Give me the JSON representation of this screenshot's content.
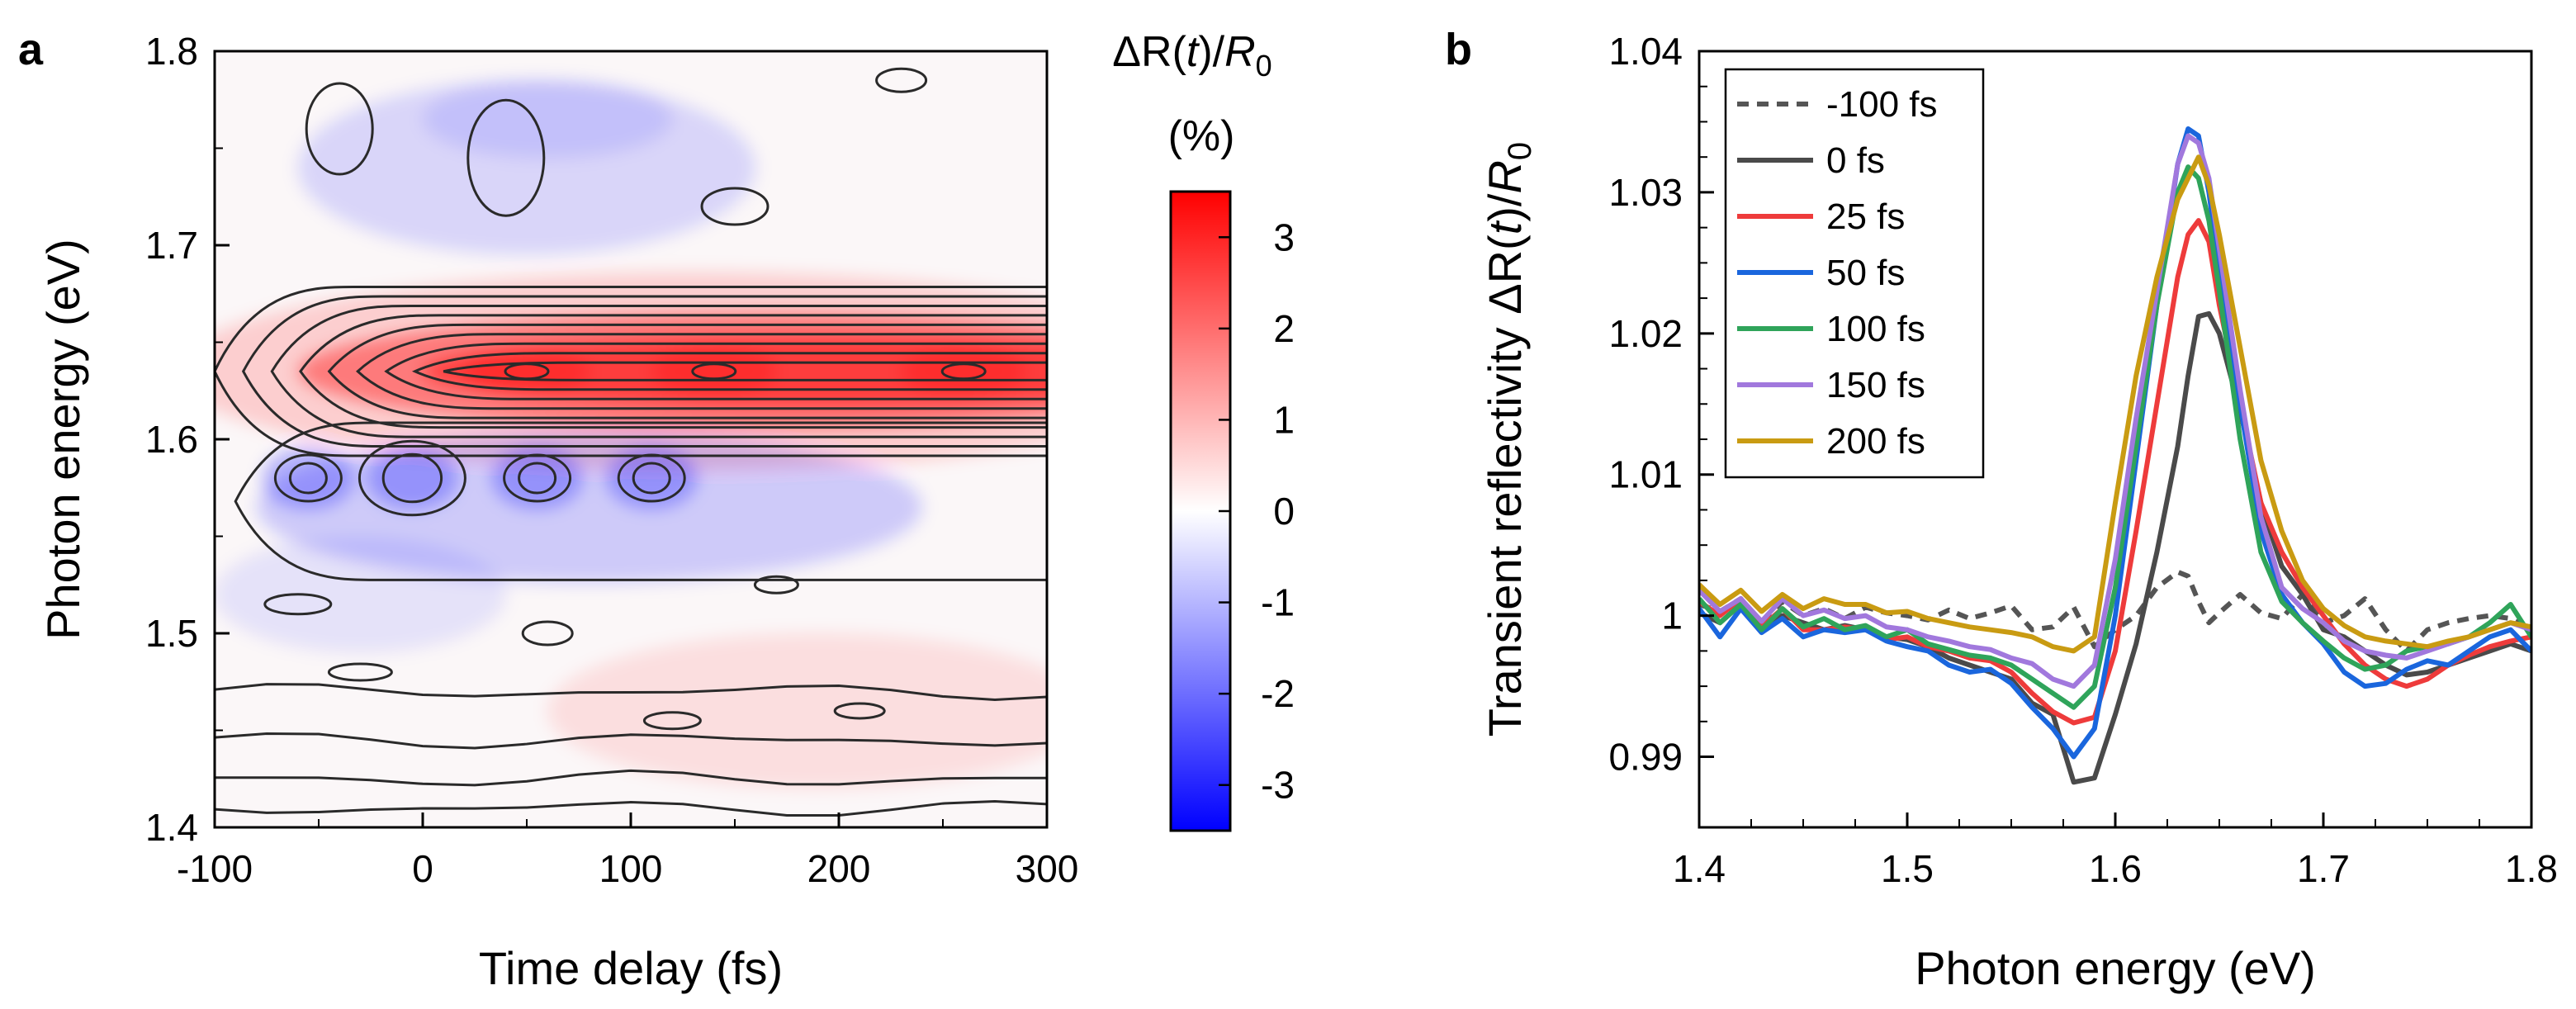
{
  "chart_data": [
    {
      "panel": "a",
      "type": "heatmap",
      "xlabel": "Time delay (fs)",
      "ylabel": "Photon energy (eV)",
      "xlim": [
        -100,
        300
      ],
      "ylim": [
        1.4,
        1.8
      ],
      "x_ticks": [
        "-100",
        "0",
        "100",
        "200",
        "300"
      ],
      "y_ticks": [
        "1.4",
        "1.5",
        "1.6",
        "1.7",
        "1.8"
      ],
      "colorbar": {
        "title_line1": "ΔR(t)/R0",
        "title_main": "ΔR(",
        "title_t": "t",
        "title_close": ")/",
        "title_R": "R",
        "title_sub": "0",
        "title_line2": "(%)",
        "range": [
          -3.5,
          3.5
        ],
        "ticks": [
          "3",
          "2",
          "1",
          "0",
          "-1",
          "-2",
          "-3"
        ],
        "colors": {
          "low": "#0000ff",
          "mid": "#ffffff",
          "high": "#ff0000"
        }
      },
      "features": {
        "positive_band": {
          "energy_center_eV": 1.635,
          "energy_halfwidth_eV": 0.03,
          "onset_fs": -60,
          "peak_percent": 3.2,
          "maxima_fs": [
            50,
            140,
            260
          ]
        },
        "negative_band": {
          "energy_center_eV": 1.58,
          "energy_halfwidth_eV": 0.03,
          "onset_fs": -80,
          "min_percent": -1.4,
          "minima_fs": [
            -55,
            -5,
            55,
            110
          ]
        },
        "upper_negative_region": {
          "energy_center_eV": 1.74,
          "min_percent": -0.6
        }
      }
    },
    {
      "panel": "b",
      "type": "line",
      "xlabel": "Photon energy (eV)",
      "ylabel": "Transient reflectivity ΔR(t)/R0",
      "ylabel_main": "Transient reflectivity ΔR(",
      "ylabel_t": "t",
      "ylabel_close": ")/",
      "ylabel_R": "R",
      "ylabel_sub": "0",
      "xlim": [
        1.4,
        1.8
      ],
      "ylim": [
        0.985,
        1.04
      ],
      "x_ticks": [
        "1.4",
        "1.5",
        "1.6",
        "1.7",
        "1.8"
      ],
      "y_ticks": [
        "0.99",
        "1",
        "1.01",
        "1.02",
        "1.03",
        "1.04"
      ],
      "x": [
        1.4,
        1.41,
        1.42,
        1.43,
        1.44,
        1.45,
        1.46,
        1.47,
        1.48,
        1.49,
        1.5,
        1.51,
        1.52,
        1.53,
        1.54,
        1.55,
        1.56,
        1.57,
        1.58,
        1.59,
        1.6,
        1.61,
        1.62,
        1.63,
        1.635,
        1.64,
        1.645,
        1.65,
        1.66,
        1.67,
        1.68,
        1.69,
        1.7,
        1.71,
        1.72,
        1.73,
        1.74,
        1.75,
        1.76,
        1.77,
        1.78,
        1.79,
        1.8
      ],
      "series": [
        {
          "name": "-100 fs",
          "color": "#555555",
          "dash": true,
          "values": [
            1.0008,
            1.0003,
            1.0012,
            0.9995,
            1.001,
            1.0,
            1.0005,
            0.9998,
            1.0006,
            1.0002,
            1.0,
            0.9997,
            1.0004,
            0.9998,
            1.0002,
            1.0007,
            0.999,
            0.9992,
            1.0006,
            0.9978,
            0.999,
            1.0,
            1.002,
            1.0031,
            1.0028,
            1.001,
            0.9995,
            1.0002,
            1.0015,
            1.0002,
            0.9998,
            1.0015,
            0.9995,
            1.0,
            1.0012,
            0.999,
            0.9975,
            0.999,
            0.9995,
            0.9998,
            1.0,
            0.9998,
            0.999
          ]
        },
        {
          "name": "0 fs",
          "color": "#4a4a4a",
          "dash": false,
          "values": [
            1.0002,
            0.9995,
            1.0008,
            0.999,
            1.0,
            0.9995,
            0.999,
            0.9993,
            0.999,
            0.9985,
            0.9983,
            0.9978,
            0.997,
            0.9965,
            0.996,
            0.9955,
            0.9938,
            0.993,
            0.9882,
            0.9885,
            0.993,
            0.998,
            1.0045,
            1.012,
            1.017,
            1.0212,
            1.0214,
            1.02,
            1.0145,
            1.008,
            1.0035,
            1.0015,
            0.999,
            0.9985,
            0.9975,
            0.9965,
            0.9958,
            0.996,
            0.9965,
            0.997,
            0.9975,
            0.998,
            0.9975
          ]
        },
        {
          "name": "25 fs",
          "color": "#ee3b3b",
          "dash": false,
          "values": [
            1.001,
            1.0,
            1.0012,
            0.9992,
            1.0005,
            0.999,
            0.999,
            0.9992,
            0.999,
            0.9983,
            0.9985,
            0.9978,
            0.9975,
            0.997,
            0.9968,
            0.996,
            0.9945,
            0.9932,
            0.9924,
            0.9928,
            0.9975,
            1.006,
            1.015,
            1.024,
            1.027,
            1.028,
            1.0265,
            1.022,
            1.015,
            1.008,
            1.0045,
            1.002,
            1.0,
            0.998,
            0.9965,
            0.9955,
            0.995,
            0.9955,
            0.9965,
            0.9972,
            0.9978,
            0.9982,
            0.9985
          ]
        },
        {
          "name": "50 fs",
          "color": "#1a66dd",
          "dash": false,
          "values": [
            1.0005,
            0.9985,
            1.0005,
            0.9988,
            0.9998,
            0.9985,
            0.999,
            0.9988,
            0.999,
            0.9982,
            0.9978,
            0.9975,
            0.9965,
            0.996,
            0.9962,
            0.9952,
            0.9935,
            0.992,
            0.99,
            0.992,
            1.0,
            1.011,
            1.022,
            1.032,
            1.0345,
            1.034,
            1.03,
            1.0245,
            1.015,
            1.006,
            1.0015,
            0.9995,
            0.998,
            0.996,
            0.995,
            0.9952,
            0.9962,
            0.9968,
            0.9965,
            0.9975,
            0.9985,
            0.999,
            0.9975
          ]
        },
        {
          "name": "100 fs",
          "color": "#2fa45a",
          "dash": false,
          "values": [
            1.0012,
            0.9995,
            1.0008,
            0.999,
            1.0005,
            0.9992,
            0.9998,
            0.999,
            0.9993,
            0.9985,
            0.999,
            0.998,
            0.9976,
            0.9972,
            0.997,
            0.9965,
            0.9955,
            0.9945,
            0.9935,
            0.995,
            1.002,
            1.012,
            1.022,
            1.03,
            1.0318,
            1.031,
            1.028,
            1.023,
            1.0125,
            1.0045,
            1.001,
            0.9995,
            0.9982,
            0.997,
            0.9962,
            0.9965,
            0.9975,
            0.9978,
            0.998,
            0.9985,
            0.9995,
            1.0008,
            0.9985
          ]
        },
        {
          "name": "150 fs",
          "color": "#a178dd",
          "dash": false,
          "values": [
            1.0018,
            1.0003,
            1.0012,
            0.9996,
            1.0012,
            1.0,
            1.0004,
            0.9998,
            1.0,
            0.9992,
            0.999,
            0.9985,
            0.9982,
            0.9978,
            0.9976,
            0.997,
            0.9966,
            0.9955,
            0.995,
            0.9965,
            1.004,
            1.014,
            1.023,
            1.032,
            1.034,
            1.0335,
            1.031,
            1.026,
            1.016,
            1.007,
            1.002,
            1.0005,
            0.9995,
            0.9982,
            0.9975,
            0.9972,
            0.997,
            0.9975,
            0.998,
            0.9985,
            0.999,
            0.9995,
            0.999
          ]
        },
        {
          "name": "200 fs",
          "color": "#c99b12",
          "dash": false,
          "values": [
            1.0022,
            1.0008,
            1.0018,
            1.0003,
            1.0015,
            1.0005,
            1.0012,
            1.0008,
            1.0008,
            1.0002,
            1.0003,
            0.9998,
            0.9995,
            0.9992,
            0.999,
            0.9988,
            0.9985,
            0.9978,
            0.9975,
            0.9985,
            1.008,
            1.017,
            1.024,
            1.0295,
            1.031,
            1.0325,
            1.0305,
            1.027,
            1.019,
            1.011,
            1.006,
            1.0025,
            1.0005,
            0.9993,
            0.9985,
            0.9982,
            0.998,
            0.9978,
            0.9982,
            0.9985,
            0.999,
            0.9995,
            0.9992
          ]
        }
      ],
      "legend_position": "top-left"
    }
  ]
}
